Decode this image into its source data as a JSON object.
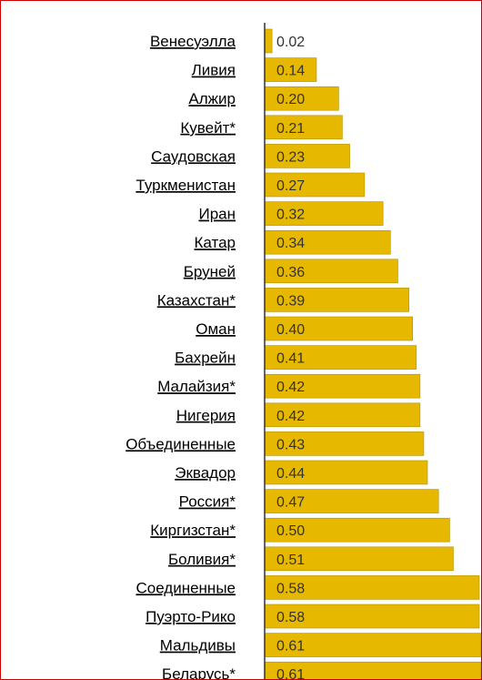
{
  "chart_data": {
    "type": "bar",
    "orientation": "horizontal",
    "categories": [
      "Венесуэлла",
      "Ливия",
      "Алжир",
      "Кувейт*",
      "Саудовская",
      "Туркменистан",
      "Иран",
      "Катар",
      "Бруней",
      "Казахстан*",
      "Оман",
      "Бахрейн",
      "Малайзия*",
      "Нигерия",
      "Объединенные",
      "Эквадор",
      "Россия*",
      "Киргизстан*",
      "Боливия*",
      "Соединенные",
      "Пуэрто-Рико",
      "Мальдивы",
      "Беларусь*"
    ],
    "values": [
      0.02,
      0.14,
      0.2,
      0.21,
      0.23,
      0.27,
      0.32,
      0.34,
      0.36,
      0.39,
      0.4,
      0.41,
      0.42,
      0.42,
      0.43,
      0.44,
      0.47,
      0.5,
      0.51,
      0.58,
      0.58,
      0.61,
      0.61
    ],
    "value_labels": [
      "0.02",
      "0.14",
      "0.20",
      "0.21",
      "0.23",
      "0.27",
      "0.32",
      "0.34",
      "0.36",
      "0.39",
      "0.40",
      "0.41",
      "0.42",
      "0.42",
      "0.43",
      "0.44",
      "0.47",
      "0.50",
      "0.51",
      "0.58",
      "0.58",
      "0.61",
      "0.61"
    ],
    "xlim": [
      0,
      0.585
    ],
    "bar_color": "#e6b800",
    "bar_edge_color": "#b38f00",
    "axis_color": "#333333",
    "grid": false,
    "legend": "none"
  }
}
